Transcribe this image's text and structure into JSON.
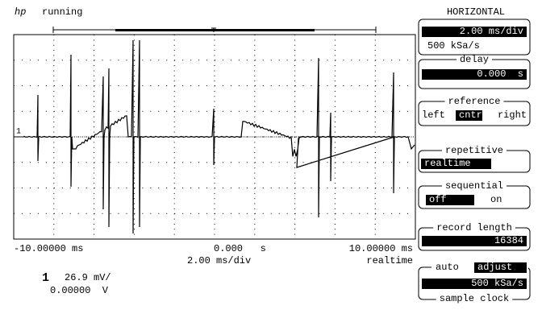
{
  "status": {
    "logo": "hp",
    "state": "running"
  },
  "axis": {
    "left": "-10.00000 ms",
    "center": "0.000   s",
    "right": "10.00000 ms",
    "scale": "2.00 ms/div",
    "mode": "realtime"
  },
  "channel": {
    "number": "1",
    "scale": "26.9 mV/",
    "offset": "0.00000  V"
  },
  "panel": {
    "title": "HORIZONTAL",
    "timebase": {
      "value": "2.00 ms/div",
      "sample_rate": "500 kSa/s"
    },
    "delay": {
      "label": "delay",
      "value": "0.000  s"
    },
    "reference": {
      "label": "reference",
      "options": [
        "left",
        "cntr",
        "right"
      ]
    },
    "repetitive": {
      "label": "repetitive",
      "value": "realtime"
    },
    "sequential": {
      "label": "sequential",
      "options": [
        "off",
        "on"
      ]
    },
    "record_length": {
      "label": "record length",
      "value": "16384"
    },
    "sample_clock": {
      "options": [
        "auto",
        "adjust"
      ],
      "value": "500 kSa/s",
      "label": "sample clock"
    }
  }
}
